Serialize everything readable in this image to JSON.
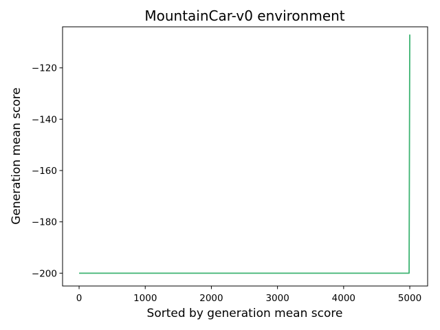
{
  "chart_data": {
    "type": "line",
    "title": "MountainCar-v0 environment",
    "xlabel": "Sorted by generation mean score",
    "ylabel": "Generation mean score",
    "xlim": [
      -250,
      5270
    ],
    "ylim": [
      -205,
      -104
    ],
    "xticks": [
      0,
      1000,
      2000,
      3000,
      4000,
      5000
    ],
    "yticks": [
      -200,
      -180,
      -160,
      -140,
      -120
    ],
    "grid": false,
    "series": [
      {
        "color": "#3cb371",
        "points": [
          [
            0,
            -200
          ],
          [
            4990,
            -200
          ],
          [
            5000,
            -107
          ]
        ]
      }
    ]
  }
}
